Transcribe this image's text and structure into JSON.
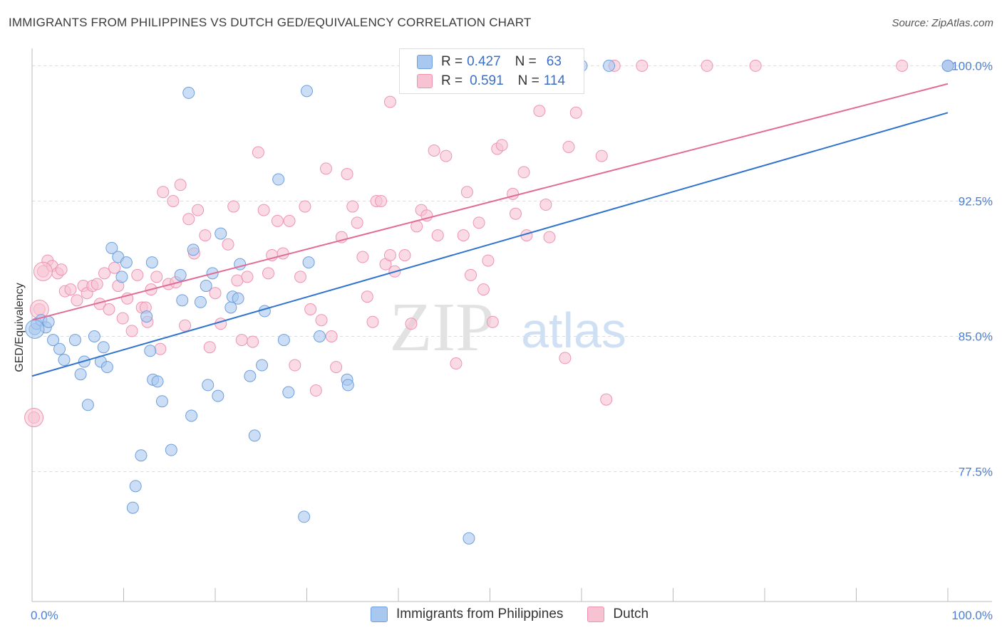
{
  "header": {
    "title": "IMMIGRANTS FROM PHILIPPINES VS DUTCH GED/EQUIVALENCY CORRELATION CHART",
    "source": "Source: ZipAtlas.com"
  },
  "watermark": {
    "zip": "ZIP",
    "atlas": "atlas"
  },
  "colors": {
    "blue_fill": "#a9c8ef",
    "blue_stroke": "#6f9fdc",
    "blue_line": "#2e73d0",
    "pink_fill": "#f7c3d3",
    "pink_stroke": "#ee94b0",
    "pink_line": "#e26b97",
    "tick_label": "#4a7fd4"
  },
  "legend": {
    "rows": [
      {
        "r_label": "R =",
        "r_value": "0.427",
        "n_label": "N =",
        "n_value": "63"
      },
      {
        "r_label": "R =",
        "r_value": "0.591",
        "n_label": "N =",
        "n_value": "114"
      }
    ]
  },
  "chart_data": {
    "type": "scatter",
    "title": "IMMIGRANTS FROM PHILIPPINES VS DUTCH GED/EQUIVALENCY CORRELATION CHART",
    "xlabel": "",
    "ylabel": "GED/Equivalency",
    "xlim": [
      0,
      100
    ],
    "ylim": [
      70.3,
      101.2
    ],
    "x_tick_labels": [
      "0.0%",
      "100.0%"
    ],
    "y_ticks": [
      77.5,
      85.0,
      92.5,
      100.0
    ],
    "y_tick_labels": [
      "77.5%",
      "85.0%",
      "92.5%",
      "100.0%"
    ],
    "grid": true,
    "legend_position": "top-center",
    "series": [
      {
        "name": "Immigrants from Philippines",
        "trend": {
          "x": [
            0,
            100
          ],
          "y": [
            82.8,
            97.4
          ]
        },
        "points": [
          [
            0.3,
            85.4
          ],
          [
            0.5,
            85.7
          ],
          [
            1.0,
            85.9
          ],
          [
            1.5,
            85.5
          ],
          [
            1.8,
            85.8
          ],
          [
            2.3,
            84.8
          ],
          [
            3.0,
            84.3
          ],
          [
            3.5,
            83.7
          ],
          [
            4.7,
            84.8
          ],
          [
            5.3,
            82.9
          ],
          [
            5.7,
            83.6
          ],
          [
            6.1,
            81.2
          ],
          [
            6.8,
            85.0
          ],
          [
            7.5,
            83.6
          ],
          [
            7.8,
            84.4
          ],
          [
            8.2,
            83.3
          ],
          [
            8.7,
            89.9
          ],
          [
            9.4,
            89.4
          ],
          [
            9.8,
            88.3
          ],
          [
            10.3,
            89.1
          ],
          [
            11.0,
            75.5
          ],
          [
            11.3,
            76.7
          ],
          [
            11.9,
            78.4
          ],
          [
            12.5,
            86.1
          ],
          [
            12.9,
            84.2
          ],
          [
            13.1,
            89.1
          ],
          [
            13.2,
            82.6
          ],
          [
            13.7,
            82.5
          ],
          [
            14.2,
            81.4
          ],
          [
            15.2,
            78.7
          ],
          [
            16.2,
            88.4
          ],
          [
            16.4,
            87.0
          ],
          [
            17.1,
            98.5
          ],
          [
            17.4,
            80.6
          ],
          [
            17.6,
            89.8
          ],
          [
            18.4,
            86.9
          ],
          [
            19.0,
            87.8
          ],
          [
            19.2,
            82.3
          ],
          [
            19.7,
            88.5
          ],
          [
            20.3,
            81.7
          ],
          [
            20.6,
            90.7
          ],
          [
            21.7,
            86.6
          ],
          [
            21.9,
            87.2
          ],
          [
            22.5,
            87.1
          ],
          [
            22.7,
            89.0
          ],
          [
            23.8,
            82.8
          ],
          [
            24.3,
            79.5
          ],
          [
            25.1,
            83.4
          ],
          [
            25.4,
            86.4
          ],
          [
            26.9,
            93.7
          ],
          [
            27.5,
            84.8
          ],
          [
            28.0,
            81.9
          ],
          [
            29.7,
            75.0
          ],
          [
            30.0,
            98.6
          ],
          [
            30.2,
            89.1
          ],
          [
            31.4,
            85.0
          ],
          [
            34.4,
            82.6
          ],
          [
            34.5,
            82.3
          ],
          [
            47.7,
            73.8
          ],
          [
            60.0,
            100.0
          ],
          [
            63.0,
            100.0
          ],
          [
            100.0,
            100.0
          ],
          [
            100.0,
            100.0
          ]
        ]
      },
      {
        "name": "Dutch",
        "trend": {
          "x": [
            0,
            100
          ],
          "y": [
            85.9,
            99.0
          ]
        },
        "points": [
          [
            0.2,
            80.5
          ],
          [
            0.8,
            86.5
          ],
          [
            1.2,
            88.6
          ],
          [
            1.7,
            89.2
          ],
          [
            2.2,
            88.9
          ],
          [
            2.8,
            88.5
          ],
          [
            3.2,
            88.7
          ],
          [
            3.6,
            87.5
          ],
          [
            4.2,
            87.6
          ],
          [
            4.9,
            87.0
          ],
          [
            5.6,
            87.8
          ],
          [
            6.0,
            87.4
          ],
          [
            6.6,
            87.8
          ],
          [
            7.1,
            87.9
          ],
          [
            7.4,
            86.8
          ],
          [
            7.9,
            88.5
          ],
          [
            8.4,
            86.5
          ],
          [
            9.0,
            88.8
          ],
          [
            9.4,
            87.8
          ],
          [
            9.9,
            86.0
          ],
          [
            10.4,
            87.1
          ],
          [
            10.9,
            85.3
          ],
          [
            11.5,
            88.4
          ],
          [
            12.0,
            86.6
          ],
          [
            12.4,
            86.6
          ],
          [
            12.6,
            85.8
          ],
          [
            13.0,
            87.6
          ],
          [
            13.6,
            88.3
          ],
          [
            14.0,
            84.3
          ],
          [
            14.3,
            93.0
          ],
          [
            14.9,
            87.9
          ],
          [
            15.4,
            92.5
          ],
          [
            15.7,
            88.0
          ],
          [
            16.2,
            93.4
          ],
          [
            16.7,
            85.6
          ],
          [
            17.1,
            91.5
          ],
          [
            17.7,
            89.6
          ],
          [
            18.1,
            92.0
          ],
          [
            18.9,
            90.6
          ],
          [
            19.4,
            84.4
          ],
          [
            20.0,
            87.4
          ],
          [
            20.6,
            85.7
          ],
          [
            21.4,
            90.1
          ],
          [
            22.0,
            92.2
          ],
          [
            22.4,
            88.1
          ],
          [
            22.9,
            84.8
          ],
          [
            23.5,
            88.3
          ],
          [
            24.1,
            84.7
          ],
          [
            24.7,
            95.2
          ],
          [
            25.3,
            92.0
          ],
          [
            25.8,
            88.5
          ],
          [
            26.2,
            89.5
          ],
          [
            26.8,
            91.4
          ],
          [
            27.4,
            89.6
          ],
          [
            28.1,
            91.4
          ],
          [
            28.7,
            83.4
          ],
          [
            29.3,
            88.3
          ],
          [
            29.8,
            92.2
          ],
          [
            30.4,
            86.5
          ],
          [
            31.0,
            82.0
          ],
          [
            31.6,
            85.9
          ],
          [
            32.1,
            94.3
          ],
          [
            32.7,
            85.0
          ],
          [
            33.2,
            83.3
          ],
          [
            33.8,
            90.5
          ],
          [
            34.4,
            94.0
          ],
          [
            35.0,
            92.2
          ],
          [
            35.5,
            91.3
          ],
          [
            36.1,
            89.4
          ],
          [
            36.6,
            87.2
          ],
          [
            37.2,
            85.8
          ],
          [
            37.6,
            92.5
          ],
          [
            38.1,
            92.5
          ],
          [
            38.6,
            89.0
          ],
          [
            39.1,
            89.5
          ],
          [
            39.6,
            88.6
          ],
          [
            40.7,
            89.5
          ],
          [
            41.4,
            85.7
          ],
          [
            42.0,
            91.1
          ],
          [
            42.5,
            92.0
          ],
          [
            43.1,
            91.7
          ],
          [
            43.9,
            95.3
          ],
          [
            44.3,
            90.6
          ],
          [
            45.2,
            95.0
          ],
          [
            46.3,
            83.5
          ],
          [
            47.1,
            90.6
          ],
          [
            47.5,
            93.0
          ],
          [
            47.9,
            88.4
          ],
          [
            48.8,
            91.3
          ],
          [
            49.3,
            87.6
          ],
          [
            49.8,
            89.2
          ],
          [
            50.3,
            85.8
          ],
          [
            50.8,
            95.4
          ],
          [
            51.3,
            95.6
          ],
          [
            52.5,
            92.9
          ],
          [
            52.8,
            91.8
          ],
          [
            53.7,
            94.1
          ],
          [
            54.0,
            90.6
          ],
          [
            55.4,
            97.5
          ],
          [
            56.1,
            92.3
          ],
          [
            56.5,
            90.5
          ],
          [
            57.1,
            100.0
          ],
          [
            58.2,
            83.8
          ],
          [
            58.6,
            95.5
          ],
          [
            59.4,
            97.4
          ],
          [
            62.2,
            95.0
          ],
          [
            62.7,
            81.5
          ],
          [
            63.6,
            100.0
          ],
          [
            66.6,
            100.0
          ],
          [
            73.7,
            100.0
          ],
          [
            79.0,
            100.0
          ],
          [
            95.0,
            100.0
          ],
          [
            100.0,
            100.0
          ],
          [
            39.1,
            98.0
          ]
        ]
      }
    ]
  },
  "bottom_legend": [
    "Immigrants from Philippines",
    "Dutch"
  ]
}
